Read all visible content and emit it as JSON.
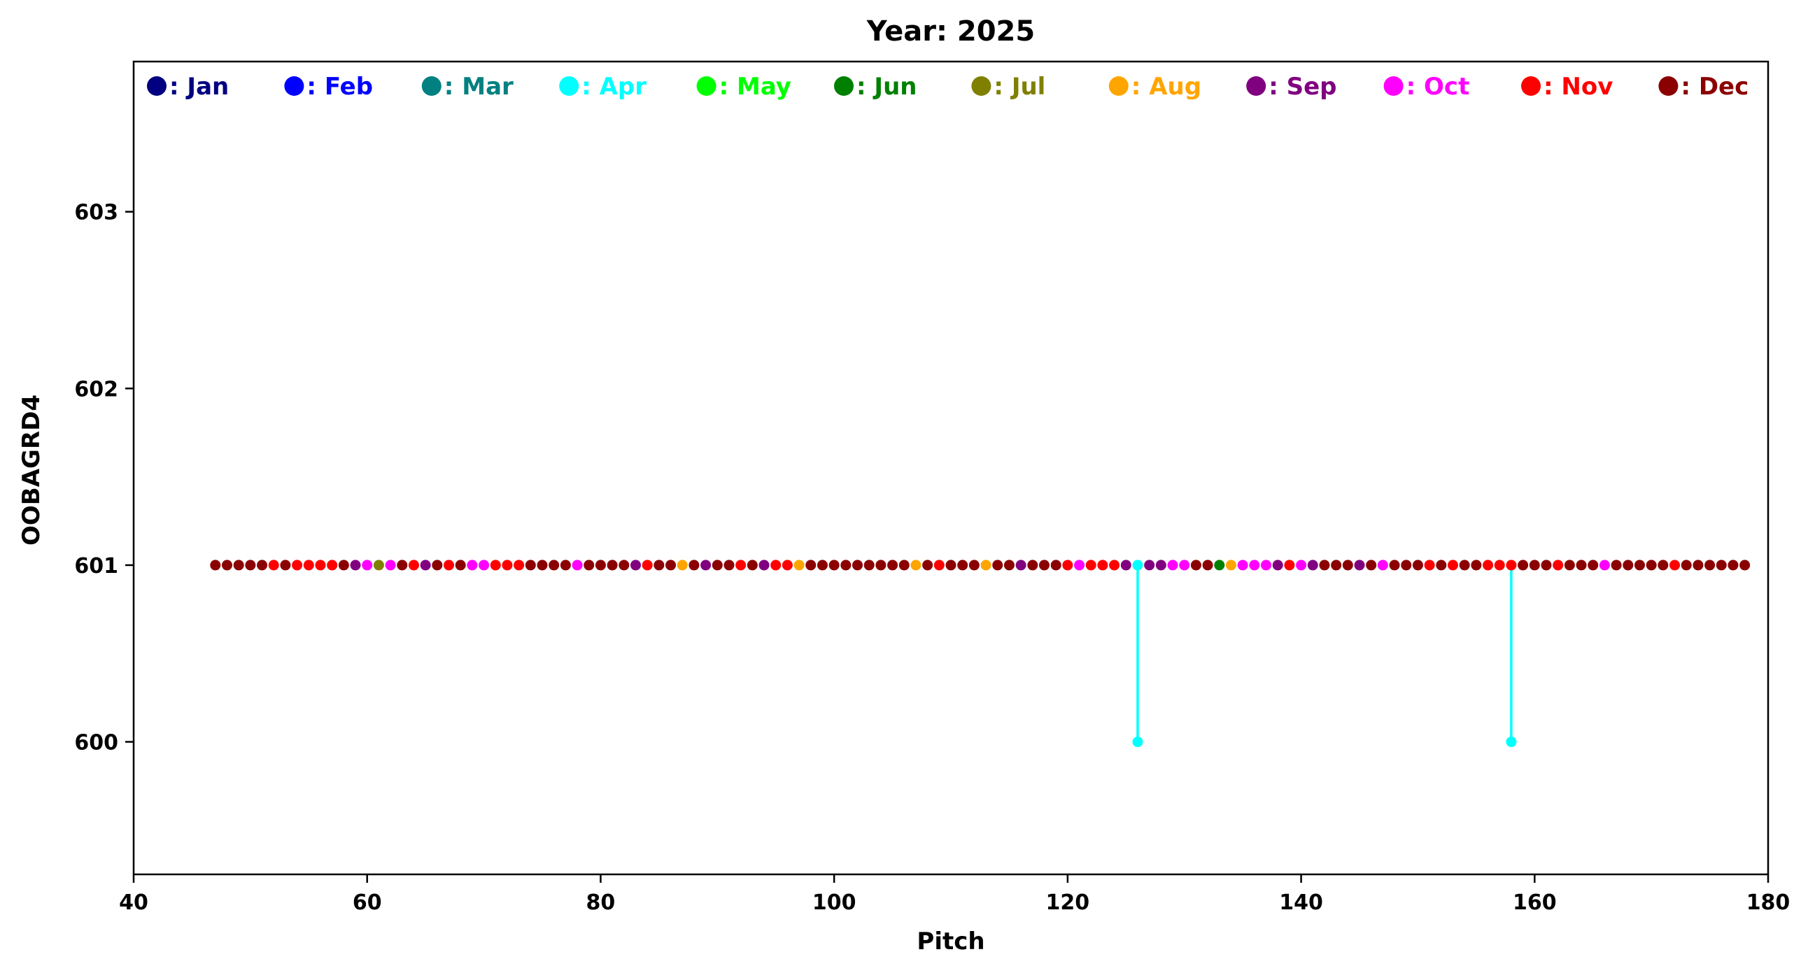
{
  "chart_data": {
    "type": "scatter",
    "title": "Year: 2025",
    "xlabel": "Pitch",
    "ylabel": "OOBAGRD4",
    "xlim": [
      40,
      180
    ],
    "ylim": [
      599.25,
      603.85
    ],
    "x_ticks": [
      40,
      60,
      80,
      100,
      120,
      140,
      160,
      180
    ],
    "y_ticks": [
      600,
      601,
      602,
      603
    ],
    "grid": false,
    "legend_placement": "top, single row inside plot",
    "legend": [
      {
        "month": "Jan",
        "label": ": Jan",
        "color": "#000080"
      },
      {
        "month": "Feb",
        "label": ": Feb",
        "color": "#0000ff"
      },
      {
        "month": "Mar",
        "label": ": Mar",
        "color": "#008080"
      },
      {
        "month": "Apr",
        "label": ": Apr",
        "color": "#00ffff"
      },
      {
        "month": "May",
        "label": ": May",
        "color": "#00ff00"
      },
      {
        "month": "Jun",
        "label": ": Jun",
        "color": "#008000"
      },
      {
        "month": "Jul",
        "label": ": Jul",
        "color": "#808000"
      },
      {
        "month": "Aug",
        "label": ": Aug",
        "color": "#ffa500"
      },
      {
        "month": "Sep",
        "label": ": Sep",
        "color": "#800080"
      },
      {
        "month": "Oct",
        "label": ": Oct",
        "color": "#ff00ff"
      },
      {
        "month": "Nov",
        "label": ": Nov",
        "color": "#ff0000"
      },
      {
        "month": "Dec",
        "label": ": Dec",
        "color": "#8b0000"
      }
    ],
    "series": [
      {
        "month": "Dec",
        "points": [
          [
            47,
            601
          ],
          [
            48,
            601
          ],
          [
            49,
            601
          ],
          [
            50,
            601
          ],
          [
            51,
            601
          ],
          [
            53,
            601
          ],
          [
            58,
            601
          ],
          [
            63,
            601
          ],
          [
            66,
            601
          ],
          [
            68,
            601
          ],
          [
            74,
            601
          ],
          [
            75,
            601
          ],
          [
            76,
            601
          ],
          [
            77,
            601
          ],
          [
            79,
            601
          ],
          [
            80,
            601
          ],
          [
            81,
            601
          ],
          [
            82,
            601
          ],
          [
            85,
            601
          ],
          [
            86,
            601
          ],
          [
            88,
            601
          ],
          [
            90,
            601
          ],
          [
            91,
            601
          ],
          [
            93,
            601
          ],
          [
            98,
            601
          ],
          [
            99,
            601
          ],
          [
            100,
            601
          ],
          [
            101,
            601
          ],
          [
            102,
            601
          ],
          [
            103,
            601
          ],
          [
            104,
            601
          ],
          [
            105,
            601
          ],
          [
            106,
            601
          ],
          [
            108,
            601
          ],
          [
            110,
            601
          ],
          [
            111,
            601
          ],
          [
            112,
            601
          ],
          [
            114,
            601
          ],
          [
            115,
            601
          ],
          [
            117,
            601
          ],
          [
            118,
            601
          ],
          [
            119,
            601
          ],
          [
            131,
            601
          ],
          [
            132,
            601
          ],
          [
            142,
            601
          ],
          [
            143,
            601
          ],
          [
            144,
            601
          ],
          [
            146,
            601
          ],
          [
            148,
            601
          ],
          [
            149,
            601
          ],
          [
            150,
            601
          ],
          [
            152,
            601
          ],
          [
            154,
            601
          ],
          [
            155,
            601
          ],
          [
            159,
            601
          ],
          [
            160,
            601
          ],
          [
            161,
            601
          ],
          [
            163,
            601
          ],
          [
            164,
            601
          ],
          [
            165,
            601
          ],
          [
            167,
            601
          ],
          [
            168,
            601
          ],
          [
            169,
            601
          ],
          [
            170,
            601
          ],
          [
            171,
            601
          ],
          [
            173,
            601
          ],
          [
            174,
            601
          ],
          [
            175,
            601
          ],
          [
            176,
            601
          ],
          [
            177,
            601
          ],
          [
            178,
            601
          ]
        ]
      },
      {
        "month": "Nov",
        "points": [
          [
            52,
            601
          ],
          [
            54,
            601
          ],
          [
            55,
            601
          ],
          [
            56,
            601
          ],
          [
            57,
            601
          ],
          [
            64,
            601
          ],
          [
            67,
            601
          ],
          [
            71,
            601
          ],
          [
            72,
            601
          ],
          [
            73,
            601
          ],
          [
            84,
            601
          ],
          [
            92,
            601
          ],
          [
            95,
            601
          ],
          [
            96,
            601
          ],
          [
            109,
            601
          ],
          [
            120,
            601
          ],
          [
            122,
            601
          ],
          [
            123,
            601
          ],
          [
            124,
            601
          ],
          [
            139,
            601
          ],
          [
            151,
            601
          ],
          [
            153,
            601
          ],
          [
            156,
            601
          ],
          [
            157,
            601
          ],
          [
            158,
            601
          ],
          [
            162,
            601
          ],
          [
            172,
            601
          ]
        ]
      },
      {
        "month": "Oct",
        "points": [
          [
            60,
            601
          ],
          [
            62,
            601
          ],
          [
            69,
            601
          ],
          [
            70,
            601
          ],
          [
            78,
            601
          ],
          [
            121,
            601
          ],
          [
            129,
            601
          ],
          [
            130,
            601
          ],
          [
            135,
            601
          ],
          [
            136,
            601
          ],
          [
            137,
            601
          ],
          [
            140,
            601
          ],
          [
            147,
            601
          ],
          [
            166,
            601
          ]
        ]
      },
      {
        "month": "Sep",
        "points": [
          [
            59,
            601
          ],
          [
            65,
            601
          ],
          [
            83,
            601
          ],
          [
            89,
            601
          ],
          [
            94,
            601
          ],
          [
            116,
            601
          ],
          [
            125,
            601
          ],
          [
            127,
            601
          ],
          [
            128,
            601
          ],
          [
            138,
            601
          ],
          [
            141,
            601
          ],
          [
            145,
            601
          ]
        ]
      },
      {
        "month": "Aug",
        "points": [
          [
            87,
            601
          ],
          [
            97,
            601
          ],
          [
            107,
            601
          ],
          [
            113,
            601
          ],
          [
            134,
            601
          ]
        ]
      },
      {
        "month": "Jul",
        "points": [
          [
            61,
            601
          ]
        ]
      },
      {
        "month": "Jun",
        "points": [
          [
            133,
            601
          ]
        ]
      },
      {
        "month": "Apr",
        "points": [
          [
            126,
            601
          ],
          [
            126,
            600
          ],
          [
            158,
            600
          ]
        ]
      }
    ],
    "lines": [
      {
        "month": "Apr",
        "x": [
          126,
          126
        ],
        "y": [
          601,
          600
        ]
      },
      {
        "month": "Apr",
        "x": [
          158,
          158
        ],
        "y": [
          601,
          600
        ]
      }
    ]
  }
}
